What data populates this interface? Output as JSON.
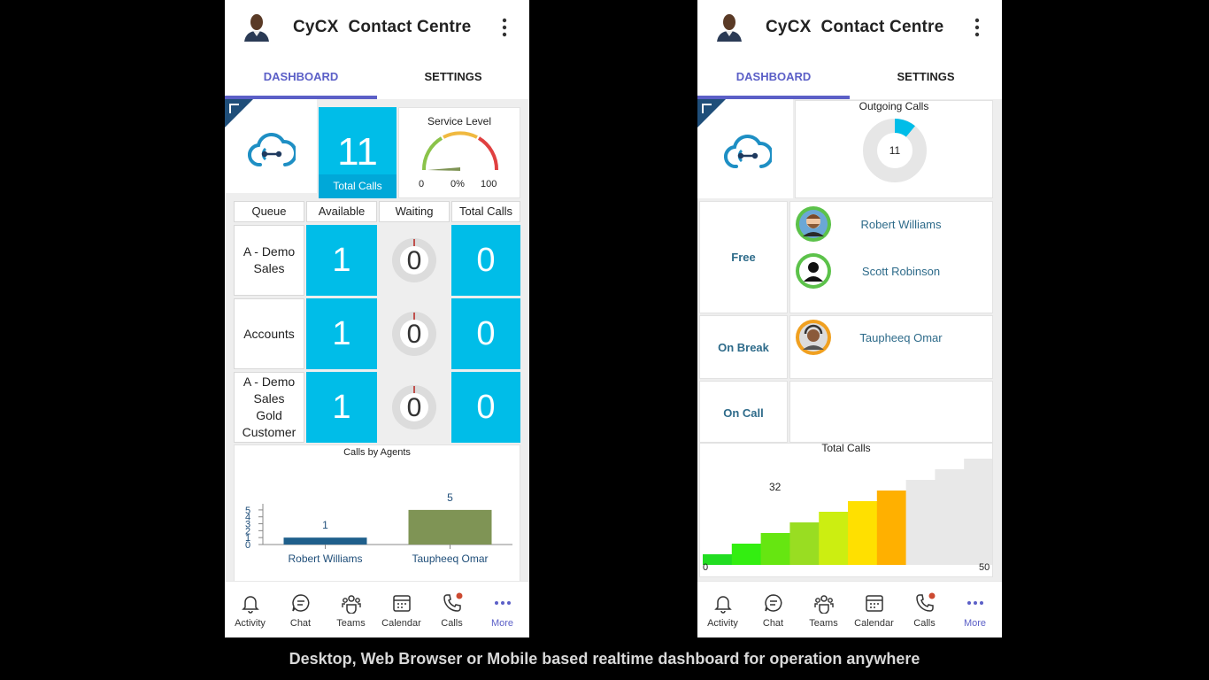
{
  "left": {
    "header": {
      "title": "CyCX  Contact Centre"
    },
    "tabs": [
      {
        "label": "DASHBOARD"
      },
      {
        "label": "SETTINGS"
      }
    ],
    "kpi": {
      "value": "11",
      "label": "Total Calls"
    },
    "service_level": {
      "title": "Service Level",
      "min": "0",
      "percent": "0%",
      "max": "100",
      "value_fraction": 0.0
    },
    "queue_table": {
      "headers": [
        "Queue",
        "Available",
        "Waiting",
        "Total Calls"
      ],
      "rows": [
        {
          "queue": "A - Demo Sales",
          "available": "1",
          "waiting": "0",
          "total": "0"
        },
        {
          "queue": "Accounts",
          "available": "1",
          "waiting": "0",
          "total": "0"
        },
        {
          "queue": "A - Demo Sales Gold Customer",
          "available": "1",
          "waiting": "0",
          "total": "0"
        }
      ]
    },
    "chart_data": {
      "type": "bar",
      "title": "Calls by Agents",
      "categories": [
        "Robert Williams",
        "Taupheeq Omar"
      ],
      "values": [
        1,
        5
      ],
      "data_labels": [
        "1",
        "5"
      ],
      "yticks": [
        "5",
        "4",
        "3",
        "2",
        "1",
        "0"
      ],
      "ylim": [
        0,
        5
      ],
      "colors": [
        "#1f5f8b",
        "#7f9455"
      ]
    }
  },
  "right": {
    "header": {
      "title": "CyCX  Contact Centre"
    },
    "tabs": [
      {
        "label": "DASHBOARD"
      },
      {
        "label": "SETTINGS"
      }
    ],
    "outgoing": {
      "title": "Outgoing Calls",
      "value": "11",
      "fill_fraction": 0.11
    },
    "agent_status": [
      {
        "status": "Free",
        "agents": [
          "Robert Williams",
          "Scott Robinson"
        ]
      },
      {
        "status": "On Break",
        "agents": [
          "Taupheeq Omar"
        ]
      },
      {
        "status": "On Call",
        "agents": []
      }
    ],
    "total_calls_gauge": {
      "title": "Total Calls",
      "value": "32",
      "min": "0",
      "max": "50",
      "value_num": 32,
      "max_num": 50,
      "segment_colors": [
        "#22dd22",
        "#33ee11",
        "#66e611",
        "#99dd22",
        "#ccee11",
        "#ffe000",
        "#ffb000",
        "#e8e8e8",
        "#e8e8e8",
        "#e8e8e8"
      ]
    }
  },
  "nav": {
    "items": [
      {
        "label": "Activity",
        "icon": "bell-icon"
      },
      {
        "label": "Chat",
        "icon": "chat-icon"
      },
      {
        "label": "Teams",
        "icon": "teams-icon"
      },
      {
        "label": "Calendar",
        "icon": "calendar-icon"
      },
      {
        "label": "Calls",
        "icon": "phone-icon"
      },
      {
        "label": "More",
        "icon": "more-icon"
      }
    ],
    "accent": "#5b5fc7",
    "badge_color": "#cc4a31"
  },
  "caption": "Desktop, Web Browser or Mobile based realtime dashboard for operation anywhere"
}
